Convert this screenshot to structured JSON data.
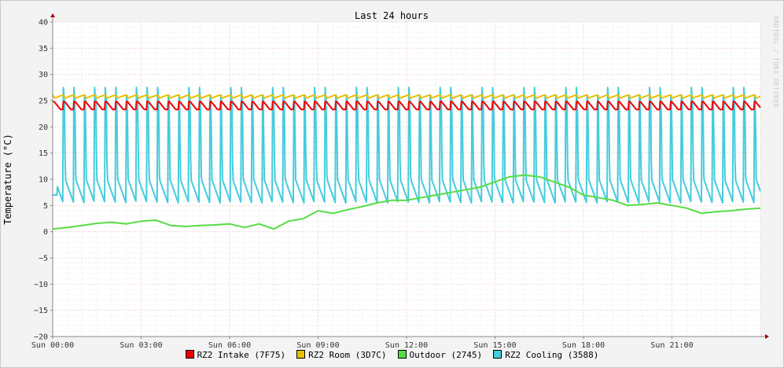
{
  "watermark": "RRDTOOL / TOBI OETIKER",
  "chart_data": {
    "type": "line",
    "title": "Last 24 hours",
    "xlabel": "",
    "ylabel": "Temperature (°C)",
    "xlim": [
      0,
      24
    ],
    "ylim": [
      -20,
      40
    ],
    "yticks": [
      40,
      35,
      30,
      25,
      20,
      15,
      10,
      5,
      0,
      -5,
      -10,
      -15,
      -20
    ],
    "xticks": [
      {
        "t": 0,
        "label": "Sun 00:00"
      },
      {
        "t": 3,
        "label": "Sun 03:00"
      },
      {
        "t": 6,
        "label": "Sun 06:00"
      },
      {
        "t": 9,
        "label": "Sun 09:00"
      },
      {
        "t": 12,
        "label": "Sun 12:00"
      },
      {
        "t": 15,
        "label": "Sun 15:00"
      },
      {
        "t": 18,
        "label": "Sun 18:00"
      },
      {
        "t": 21,
        "label": "Sun 21:00"
      }
    ],
    "grid": true,
    "legend_position": "bottom",
    "series": [
      {
        "name": "RZ2 Intake (7F75)",
        "color": "#ee0000",
        "x": [
          0,
          0.5,
          0.6,
          1,
          1.5,
          1.6,
          2,
          4,
          6,
          8,
          10,
          12,
          14,
          16,
          18,
          20,
          22,
          23.6,
          24
        ],
        "y": [
          24.5,
          23.5,
          24.8,
          23.4,
          24.6,
          23.4,
          24.3,
          24,
          24,
          24,
          24,
          24,
          24,
          24,
          24,
          24,
          24,
          23.5,
          24
        ]
      },
      {
        "name": "RZ2 Room (3D7C)",
        "color": "#e8c000",
        "x": [
          0,
          2,
          4,
          6,
          8,
          10,
          12,
          14,
          16,
          18,
          20,
          22,
          24
        ],
        "y": [
          25.8,
          25.6,
          25.7,
          25.6,
          25.7,
          25.6,
          25.7,
          25.6,
          25.7,
          25.6,
          25.7,
          25.6,
          25.6
        ]
      },
      {
        "name": "Outdoor (2745)",
        "color": "#55dd44",
        "x": [
          0,
          0.5,
          1,
          1.5,
          2,
          2.5,
          3,
          3.5,
          4,
          4.5,
          5,
          5.5,
          6,
          6.5,
          7,
          7.5,
          8,
          8.5,
          9,
          9.5,
          10,
          10.5,
          11,
          11.5,
          12,
          12.5,
          13,
          13.5,
          14,
          14.5,
          15,
          15.5,
          16,
          16.5,
          17,
          17.5,
          18,
          18.5,
          19,
          19.5,
          20,
          20.5,
          21,
          21.5,
          22,
          22.5,
          23,
          23.5,
          24
        ],
        "y": [
          0.5,
          0.8,
          1.2,
          1.6,
          1.8,
          1.5,
          2.0,
          2.2,
          1.2,
          1.0,
          1.2,
          1.3,
          1.5,
          0.8,
          1.5,
          0.5,
          2.0,
          2.5,
          4.0,
          3.5,
          4.2,
          4.8,
          5.5,
          6.0,
          6.0,
          6.5,
          7.0,
          7.5,
          8.0,
          8.5,
          9.5,
          10.5,
          10.8,
          10.5,
          9.5,
          8.5,
          7.0,
          6.5,
          6.0,
          5.0,
          5.2,
          5.5,
          5.0,
          4.5,
          3.5,
          3.8,
          4.0,
          4.3,
          4.5
        ]
      },
      {
        "name": "RZ2 Cooling (3588)",
        "color": "#44ccdd",
        "x": [
          0,
          0.1,
          0.2,
          0.3,
          0.4,
          0.5,
          0.6,
          0.7,
          0.8,
          0.9,
          1.0,
          12,
          24
        ],
        "y": [
          6,
          26,
          26,
          10,
          6,
          5.5,
          26,
          27,
          10,
          6,
          5.5,
          6,
          6
        ]
      }
    ]
  }
}
